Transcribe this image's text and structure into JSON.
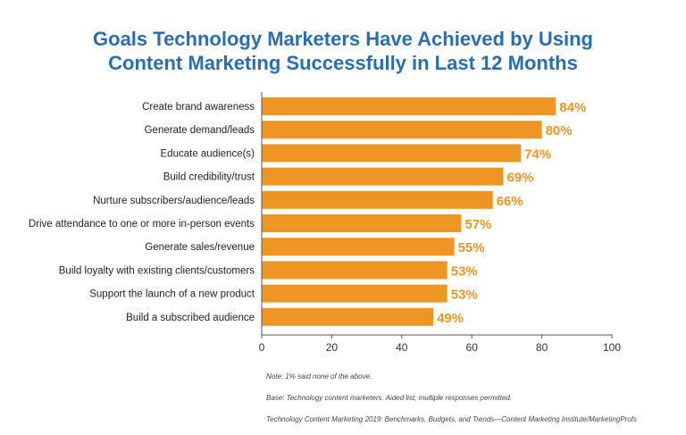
{
  "title_lines": [
    "Goals Technology Marketers Have Achieved by Using",
    "Content Marketing Successfully in Last 12 Months"
  ],
  "notes": [
    "Note: 1% said none of the above.",
    "Base: Technology content marketers. Aided list; multiple responses permitted.",
    "Technology Content Marketing 2019: Benchmarks, Budgets, and Trends—Content Marketing Institute/MarketingProfs"
  ],
  "colors": {
    "bar": "#ee9523",
    "label": "#ee9523",
    "title": "#2a6db0",
    "axis": "#555555"
  },
  "chart_data": {
    "type": "bar",
    "orientation": "horizontal",
    "title": "Goals Technology Marketers Have Achieved by Using Content Marketing Successfully in Last 12 Months",
    "categories": [
      "Create brand awareness",
      "Generate demand/leads",
      "Educate audience(s)",
      "Build credibility/trust",
      "Nurture subscribers/audience/leads",
      "Drive attendance to one or more in-person events",
      "Generate sales/revenue",
      "Build loyalty with existing clients/customers",
      "Support the launch of a new product",
      "Build a subscribed audience"
    ],
    "values": [
      84,
      80,
      74,
      69,
      66,
      57,
      55,
      53,
      53,
      49
    ],
    "value_labels": [
      "84%",
      "80%",
      "74%",
      "69%",
      "66%",
      "57%",
      "55%",
      "53%",
      "53%",
      "49%"
    ],
    "xlim": [
      0,
      100
    ],
    "xticks": [
      0,
      20,
      40,
      60,
      80,
      100
    ],
    "grid": false,
    "xlabel": "",
    "ylabel": ""
  }
}
